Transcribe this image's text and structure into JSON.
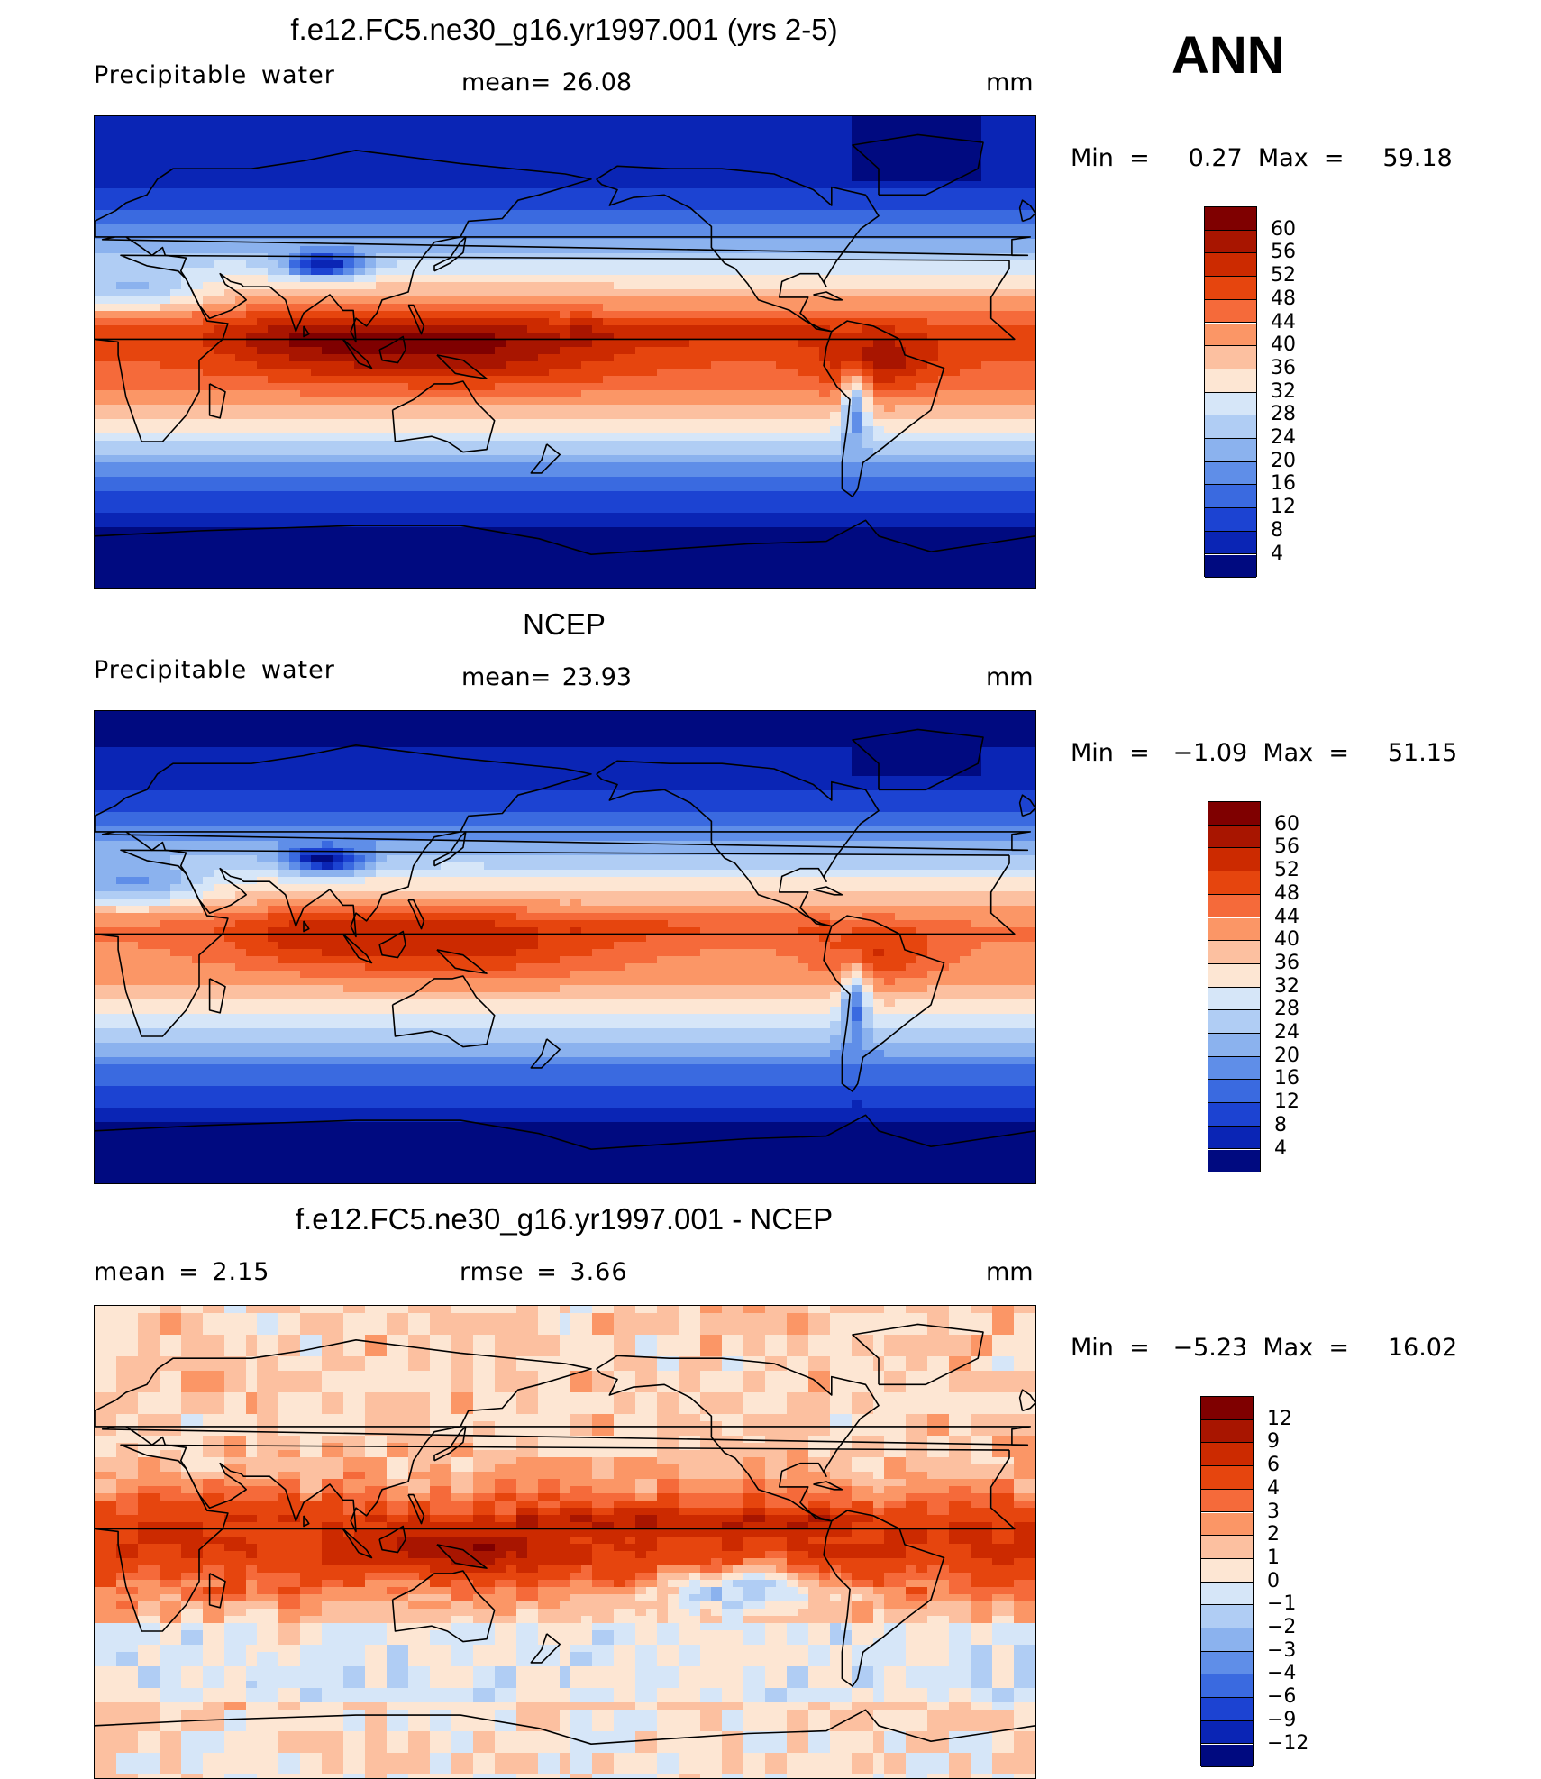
{
  "season": "ANN",
  "panels": [
    {
      "title": "f.e12.FC5.ne30_g16.yr1997.001 (yrs 2-5)",
      "left_label": "Precipitable  water",
      "center_label": "mean=   26.08",
      "units": "mm",
      "stats": "Min  =     0.27  Max  =     59.18",
      "mode": "model",
      "colorbar": {
        "ticks": [
          "60",
          "56",
          "52",
          "48",
          "44",
          "40",
          "36",
          "32",
          "28",
          "24",
          "20",
          "16",
          "12",
          "8",
          "4"
        ],
        "colors": [
          "#7f0000",
          "#a81500",
          "#cc2a00",
          "#e6450e",
          "#f56a3a",
          "#fb9666",
          "#fcc0a0",
          "#fde6d3",
          "#d6e6f8",
          "#b0cdf4",
          "#8bb2ee",
          "#5f8ee8",
          "#3a6ae0",
          "#1c43d2",
          "#0a25b5",
          "#000a80"
        ]
      }
    },
    {
      "title": "NCEP",
      "left_label": "Precipitable  water",
      "center_label": "mean=   23.93",
      "units": "mm",
      "stats": "Min  =   −1.09  Max  =     51.15",
      "mode": "obs",
      "colorbar": {
        "ticks": [
          "60",
          "56",
          "52",
          "48",
          "44",
          "40",
          "36",
          "32",
          "28",
          "24",
          "20",
          "16",
          "12",
          "8",
          "4"
        ],
        "colors": [
          "#7f0000",
          "#a81500",
          "#cc2a00",
          "#e6450e",
          "#f56a3a",
          "#fb9666",
          "#fcc0a0",
          "#fde6d3",
          "#d6e6f8",
          "#b0cdf4",
          "#8bb2ee",
          "#5f8ee8",
          "#3a6ae0",
          "#1c43d2",
          "#0a25b5",
          "#000a80"
        ]
      }
    },
    {
      "title": "f.e12.FC5.ne30_g16.yr1997.001 - NCEP",
      "left_label": "mean  =       2.15",
      "center_label": "rmse  =       3.66",
      "units": "mm",
      "stats": "Min  =   −5.23  Max  =     16.02",
      "mode": "diff",
      "colorbar": {
        "ticks": [
          "12",
          "9",
          "6",
          "4",
          "3",
          "2",
          "1",
          "0",
          "−1",
          "−2",
          "−3",
          "−4",
          "−6",
          "−9",
          "−12"
        ],
        "colors": [
          "#7f0000",
          "#a81500",
          "#cc2a00",
          "#e6450e",
          "#f56a3a",
          "#fb9666",
          "#fcc0a0",
          "#fde6d3",
          "#d6e6f8",
          "#b0cdf4",
          "#8bb2ee",
          "#5f8ee8",
          "#3a6ae0",
          "#1c43d2",
          "#0a25b5",
          "#000a80"
        ]
      }
    }
  ]
}
